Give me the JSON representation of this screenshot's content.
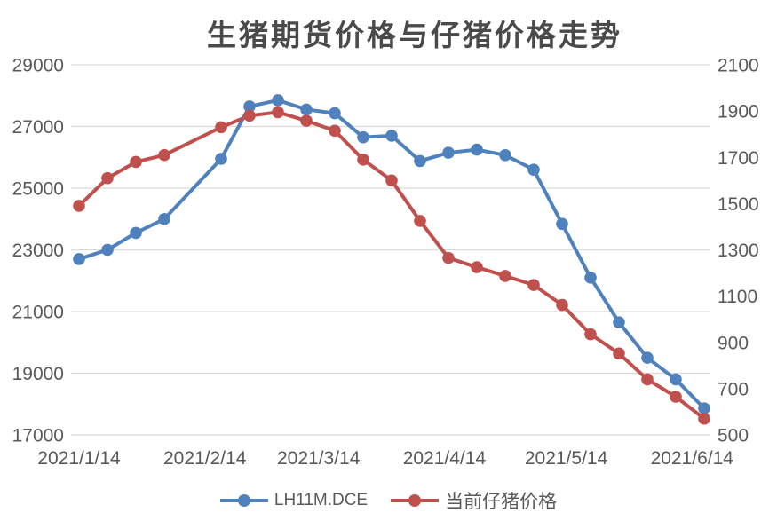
{
  "chart_data": {
    "type": "line",
    "title": "生猪期货价格与仔猪价格走势",
    "grid": "horizontal",
    "legend_position": "bottom",
    "x_axis": {
      "type": "date",
      "tick_labels": [
        "2021/1/14",
        "2021/2/14",
        "2021/3/14",
        "2021/4/14",
        "2021/5/14",
        "2021/6/14"
      ],
      "tick_day_offsets": [
        0,
        31,
        59,
        90,
        120,
        151
      ]
    },
    "left_y_axis": {
      "min": 17000,
      "max": 29000,
      "step": 2000,
      "ticks": [
        17000,
        19000,
        21000,
        23000,
        25000,
        27000,
        29000
      ]
    },
    "right_y_axis": {
      "min": 500,
      "max": 2100,
      "step": 200,
      "ticks": [
        500,
        700,
        900,
        1100,
        1300,
        1500,
        1700,
        1900,
        2100
      ]
    },
    "series": [
      {
        "name": "LH11M.DCE",
        "axis": "left",
        "color": "#4F81BD",
        "dates": [
          "2021/1/14",
          "2021/1/21",
          "2021/1/28",
          "2021/2/4",
          "2021/2/18",
          "2021/2/25",
          "2021/3/4",
          "2021/3/11",
          "2021/3/18",
          "2021/3/25",
          "2021/4/1",
          "2021/4/8",
          "2021/4/15",
          "2021/4/22",
          "2021/4/29",
          "2021/5/6",
          "2021/5/13",
          "2021/5/20",
          "2021/5/27",
          "2021/6/3",
          "2021/6/10",
          "2021/6/17"
        ],
        "day_offsets": [
          0,
          7,
          14,
          21,
          35,
          42,
          49,
          56,
          63,
          70,
          77,
          84,
          91,
          98,
          105,
          112,
          119,
          126,
          133,
          140,
          147,
          154
        ],
        "values": [
          22700,
          23000,
          23550,
          24000,
          25950,
          27650,
          27850,
          27550,
          27430,
          26650,
          26700,
          25880,
          26150,
          26250,
          26070,
          25600,
          23840,
          22100,
          20650,
          19500,
          18800,
          17860
        ]
      },
      {
        "name": "当前仔猪价格",
        "axis": "right",
        "color": "#C0504D",
        "dates": [
          "2021/1/14",
          "2021/1/21",
          "2021/1/28",
          "2021/2/4",
          "2021/2/18",
          "2021/2/25",
          "2021/3/4",
          "2021/3/11",
          "2021/3/18",
          "2021/3/25",
          "2021/4/1",
          "2021/4/8",
          "2021/4/15",
          "2021/4/22",
          "2021/4/29",
          "2021/5/6",
          "2021/5/13",
          "2021/5/20",
          "2021/5/27",
          "2021/6/3",
          "2021/6/10",
          "2021/6/17"
        ],
        "day_offsets": [
          0,
          7,
          14,
          21,
          35,
          42,
          49,
          56,
          63,
          70,
          77,
          84,
          91,
          98,
          105,
          112,
          119,
          126,
          133,
          140,
          147,
          154
        ],
        "values": [
          1490,
          1610,
          1680,
          1710,
          1830,
          1880,
          1895,
          1858,
          1815,
          1690,
          1600,
          1425,
          1265,
          1225,
          1187,
          1148,
          1062,
          935,
          852,
          740,
          665,
          570
        ]
      }
    ],
    "style": {
      "gridline_color": "#D9D9D9",
      "axis_text_color": "#595959",
      "title_color": "#4a4a4a",
      "line_width": 4,
      "marker_radius": 6.8
    }
  }
}
